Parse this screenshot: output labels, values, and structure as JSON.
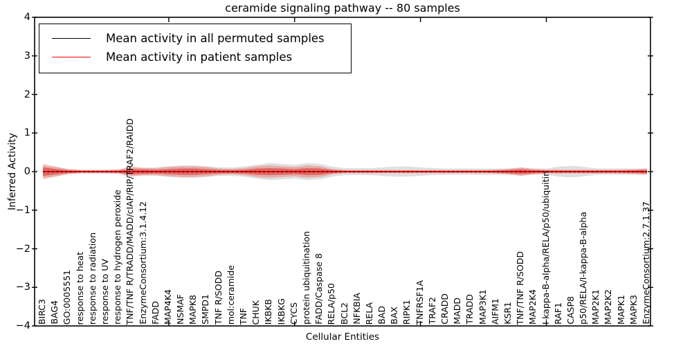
{
  "chart_data": {
    "type": "line",
    "title": "ceramide signaling pathway -- 80 samples",
    "xlabel": "Cellular Entities",
    "ylabel": "Inferred Activity",
    "ylim": [
      -4,
      4
    ],
    "yticks": {
      "values": [
        4,
        3,
        2,
        1,
        0,
        -1,
        -2,
        -3,
        -4
      ],
      "labels": [
        "4",
        "3",
        "2",
        "1",
        "0",
        "−1",
        "−2",
        "−3",
        "−4"
      ]
    },
    "grid": false,
    "legend_position": "upper left",
    "categories": [
      "BIRC3",
      "BAG4",
      "GO:0005551",
      "response to heat",
      "response to radiation",
      "response to UV",
      "response to hydrogen peroxide",
      "TNF/TNF R/TRADD/MADD/cIAP/RIP/TRAF2/RAIDD",
      "EnzymeConsortium:3.1.4.12",
      "FADD",
      "MAP4K4",
      "NSMAF",
      "MAPK8",
      "SMPD1",
      "TNF R/SODD",
      "mol:ceramide",
      "TNF",
      "CHUK",
      "IKBKB",
      "IKBKG",
      "CYCS",
      "protein ubiquitination",
      "FADD/Caspase 8",
      "RELA/p50",
      "BCL2",
      "NFKBIA",
      "RELA",
      "BAD",
      "BAX",
      "RIPK1",
      "TNFRSF1A",
      "TRAF2",
      "CRADD",
      "MADD",
      "TRADD",
      "MAP3K1",
      "AIFM1",
      "KSR1",
      "TNF/TNF R/SODD",
      "MAP2K4",
      "I-kappa-B-alpha/RELA/p50/ubiquitin",
      "RAF1",
      "CASP8",
      "p50/RELA/I-kappa-B-alpha",
      "MAP2K1",
      "MAP2K2",
      "MAPK1",
      "MAPK3",
      "EnzymeConsortium:2.7.1.37"
    ],
    "series": [
      {
        "name": "Mean activity in all permuted samples",
        "color": "#000000",
        "style": "dashed",
        "values": [
          0,
          0,
          0,
          0,
          0,
          0,
          0,
          0,
          0,
          0,
          0,
          0,
          0,
          0,
          0,
          0,
          0,
          0,
          0,
          0,
          0,
          0,
          0,
          0,
          0,
          0,
          0,
          0,
          0,
          0,
          0,
          0,
          0,
          0,
          0,
          0,
          0,
          0,
          0,
          0,
          0,
          0,
          0,
          0,
          0,
          0,
          0,
          0,
          0
        ]
      },
      {
        "name": "Mean activity in patient samples",
        "color": "#ff0000",
        "style": "solid",
        "values": [
          0,
          0,
          0,
          0,
          0,
          0,
          0,
          0,
          0,
          0,
          0,
          0,
          0,
          0,
          0,
          0,
          0,
          0,
          0,
          0,
          0,
          0,
          0,
          0,
          0,
          0,
          0,
          0,
          0,
          0,
          0,
          0,
          0,
          0,
          0,
          0,
          0,
          0,
          0,
          0,
          0,
          0,
          0,
          0,
          0,
          0,
          0,
          0,
          0
        ]
      }
    ],
    "bands": [
      {
        "name": "permuted-sample-spread",
        "color": "#808080",
        "opacity": 0.25,
        "half_widths": [
          0.16,
          0.12,
          0.07,
          0.05,
          0.05,
          0.05,
          0.06,
          0.1,
          0.09,
          0.11,
          0.14,
          0.16,
          0.16,
          0.14,
          0.11,
          0.11,
          0.13,
          0.18,
          0.22,
          0.2,
          0.18,
          0.22,
          0.2,
          0.13,
          0.09,
          0.09,
          0.09,
          0.11,
          0.13,
          0.13,
          0.11,
          0.09,
          0.08,
          0.08,
          0.08,
          0.08,
          0.08,
          0.08,
          0.1,
          0.08,
          0.08,
          0.13,
          0.15,
          0.12,
          0.08,
          0.08,
          0.08,
          0.08,
          0.08
        ]
      },
      {
        "name": "patient-sample-spread-outer",
        "color": "#f4433c",
        "opacity": 0.32,
        "half_widths": [
          0.2,
          0.13,
          0.06,
          0.04,
          0.04,
          0.04,
          0.05,
          0.13,
          0.1,
          0.09,
          0.12,
          0.14,
          0.14,
          0.12,
          0.08,
          0.07,
          0.09,
          0.14,
          0.16,
          0.14,
          0.12,
          0.16,
          0.14,
          0.07,
          0.04,
          0.04,
          0.04,
          0.04,
          0.04,
          0.04,
          0.04,
          0.04,
          0.04,
          0.04,
          0.04,
          0.04,
          0.05,
          0.07,
          0.11,
          0.07,
          0.05,
          0.05,
          0.05,
          0.05,
          0.05,
          0.05,
          0.05,
          0.06,
          0.08
        ]
      },
      {
        "name": "patient-sample-spread-inner",
        "color": "#d8201a",
        "opacity": 0.5,
        "half_widths": [
          0.11,
          0.07,
          0.035,
          0.022,
          0.022,
          0.022,
          0.028,
          0.07,
          0.055,
          0.05,
          0.065,
          0.08,
          0.08,
          0.065,
          0.045,
          0.04,
          0.05,
          0.08,
          0.09,
          0.08,
          0.065,
          0.09,
          0.08,
          0.04,
          0.022,
          0.022,
          0.022,
          0.022,
          0.022,
          0.022,
          0.022,
          0.022,
          0.022,
          0.022,
          0.022,
          0.022,
          0.028,
          0.04,
          0.06,
          0.04,
          0.028,
          0.028,
          0.028,
          0.028,
          0.028,
          0.028,
          0.028,
          0.033,
          0.045
        ]
      }
    ]
  }
}
